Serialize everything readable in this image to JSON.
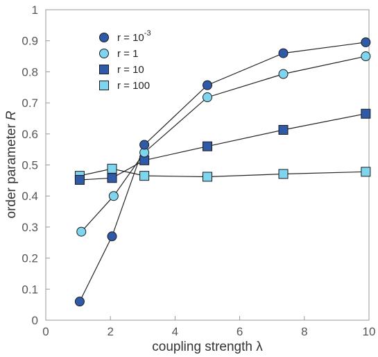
{
  "chart_data": {
    "type": "scatter",
    "xlabel": "coupling strength λ",
    "ylabel": "order parameter",
    "ylabel_symbol": "R",
    "xlim": [
      0,
      10
    ],
    "ylim": [
      0,
      1
    ],
    "xticks": [
      "0",
      "2",
      "4",
      "6",
      "8",
      "10"
    ],
    "yticks": [
      "0",
      "0.1",
      "0.2",
      "0.3",
      "0.4",
      "0.5",
      "0.6",
      "0.7",
      "0.8",
      "0.9",
      "1"
    ],
    "grid": false,
    "legend_position": "top-left",
    "series": [
      {
        "name": "r = 10",
        "name_sup": "-3",
        "marker": "circle",
        "color": "#2f5aa8",
        "x": [
          1.05,
          2.05,
          3.05,
          5.0,
          7.35,
          9.9
        ],
        "y": [
          0.06,
          0.27,
          0.565,
          0.757,
          0.86,
          0.895
        ]
      },
      {
        "name": "r = 1",
        "name_sup": "",
        "marker": "circle",
        "color": "#7fd4ee",
        "x": [
          1.1,
          2.1,
          3.05,
          5.0,
          7.35,
          9.9
        ],
        "y": [
          0.285,
          0.4,
          0.54,
          0.718,
          0.793,
          0.85
        ]
      },
      {
        "name": "r = 10",
        "name_sup": "",
        "marker": "square",
        "color": "#2f5aa8",
        "x": [
          1.05,
          2.05,
          3.05,
          5.0,
          7.35,
          9.9
        ],
        "y": [
          0.452,
          0.458,
          0.515,
          0.56,
          0.613,
          0.665
        ]
      },
      {
        "name": "r = 100",
        "name_sup": "",
        "marker": "square",
        "color": "#7fd4ee",
        "x": [
          1.05,
          2.05,
          3.05,
          5.0,
          7.35,
          9.9
        ],
        "y": [
          0.465,
          0.488,
          0.465,
          0.462,
          0.471,
          0.478
        ]
      }
    ]
  }
}
